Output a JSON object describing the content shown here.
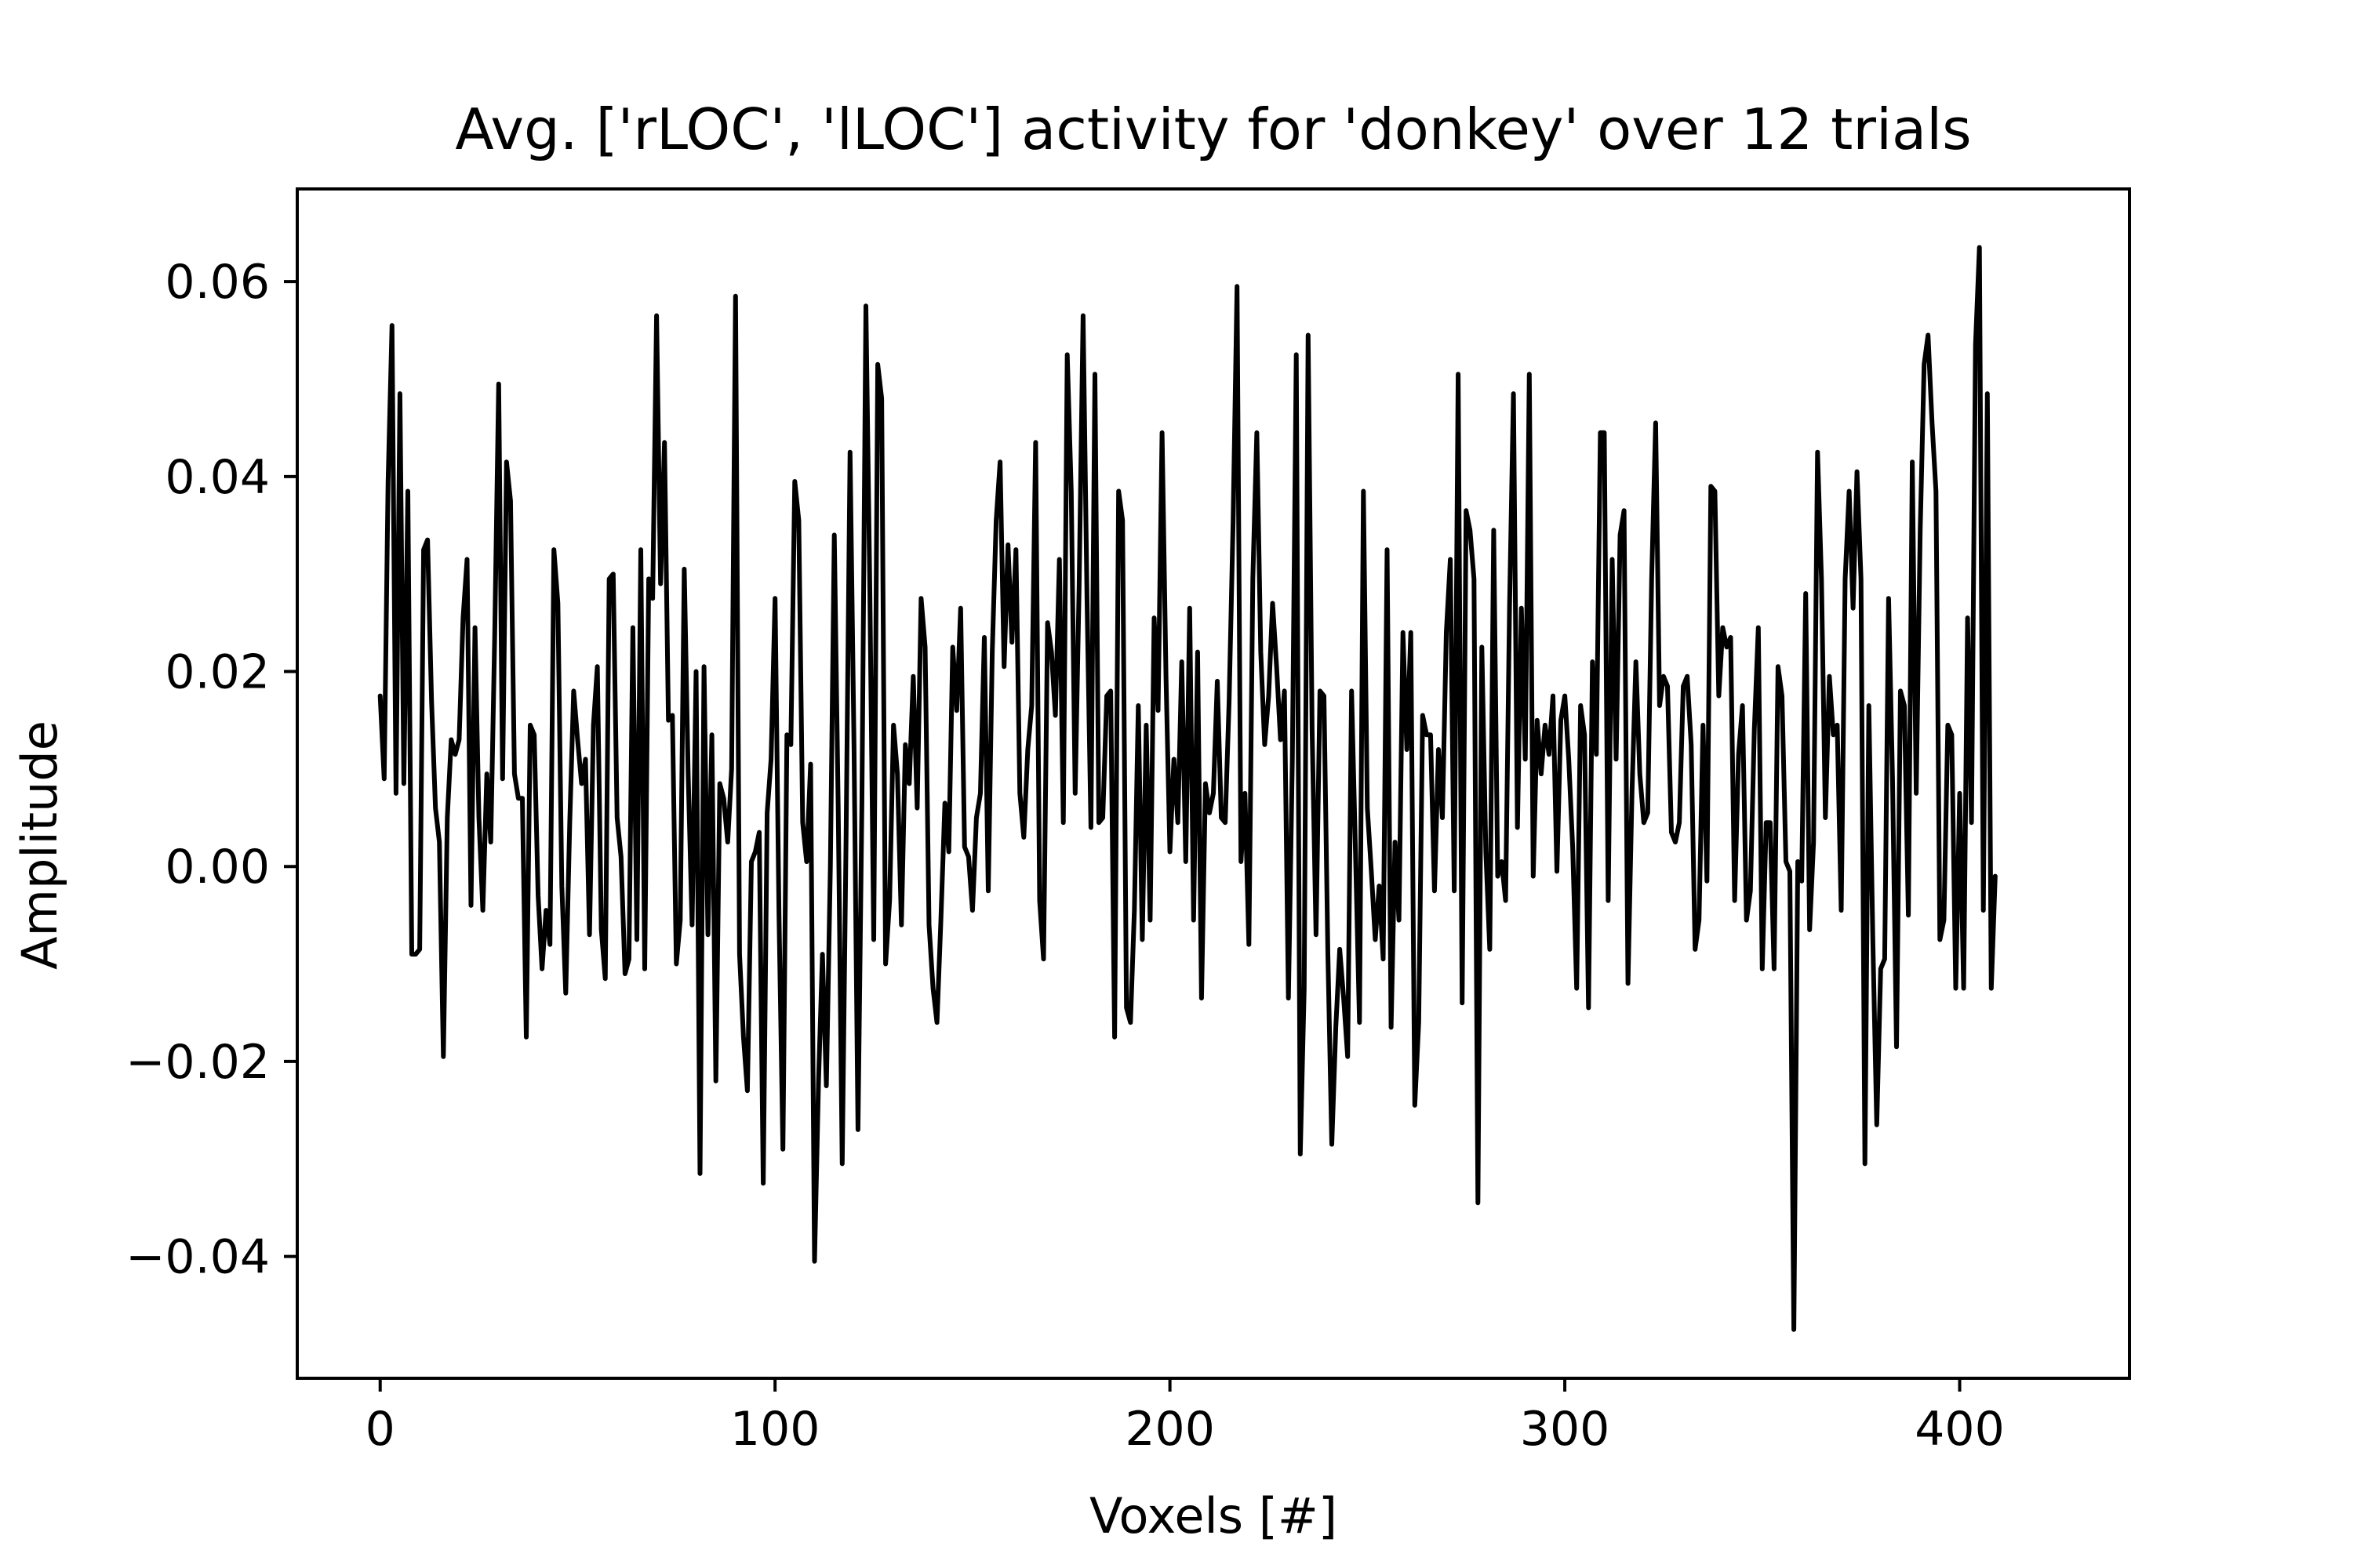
{
  "chart_data": {
    "type": "line",
    "title": "Avg. ['rLOC', 'lLOC'] activity for 'donkey' over 12 trials",
    "xlabel": "Voxels [#]",
    "ylabel": "Amplitude",
    "xlim": [
      -21,
      443
    ],
    "ylim": [
      -0.0525,
      0.0695
    ],
    "xticks": [
      0,
      100,
      200,
      300,
      400
    ],
    "xtick_labels": [
      "0",
      "100",
      "200",
      "300",
      "400"
    ],
    "yticks": [
      -0.04,
      -0.02,
      0.0,
      0.02,
      0.04,
      0.06
    ],
    "ytick_labels": [
      "−0.04",
      "−0.02",
      "0.00",
      "0.02",
      "0.04",
      "0.06"
    ],
    "grid": false,
    "legend": "none",
    "line_color": "#000000",
    "series": [
      {
        "x_start": 0,
        "x_step": 1,
        "values": [
          0.0175,
          0.009,
          0.0395,
          0.0555,
          0.0075,
          0.0485,
          0.0085,
          0.0385,
          -0.009,
          -0.009,
          -0.0085,
          0.0325,
          0.0335,
          0.017,
          0.006,
          0.0025,
          -0.0195,
          0.005,
          0.013,
          0.0115,
          0.013,
          0.0255,
          0.0315,
          -0.004,
          0.0245,
          0.005,
          -0.0045,
          0.0095,
          0.0025,
          0.0235,
          0.0495,
          0.009,
          0.0415,
          0.0375,
          0.0095,
          0.007,
          0.007,
          -0.0175,
          0.0145,
          0.0135,
          -0.003,
          -0.0105,
          -0.0045,
          -0.008,
          0.0325,
          0.027,
          -0.002,
          -0.013,
          0.0045,
          0.018,
          0.013,
          0.0085,
          0.011,
          -0.007,
          0.0145,
          0.0205,
          -0.0065,
          -0.0115,
          0.0295,
          0.03,
          0.005,
          0.001,
          -0.011,
          -0.0095,
          0.0245,
          -0.0075,
          0.0325,
          -0.0105,
          0.0295,
          0.0275,
          0.0565,
          0.029,
          0.0435,
          0.015,
          0.0155,
          -0.01,
          -0.0055,
          0.0305,
          0.0095,
          -0.006,
          0.02,
          -0.0315,
          0.0205,
          -0.007,
          0.0135,
          -0.022,
          0.0085,
          0.007,
          0.0025,
          0.01,
          0.0585,
          -0.009,
          -0.0175,
          -0.023,
          0.0005,
          0.0015,
          0.0035,
          -0.0325,
          0.0055,
          0.011,
          0.0275,
          -0.005,
          -0.029,
          0.0135,
          0.0125,
          0.0395,
          0.0355,
          0.0045,
          0.0005,
          0.0105,
          -0.0405,
          -0.022,
          -0.009,
          -0.0225,
          0.0,
          0.034,
          0.006,
          -0.0305,
          0.0035,
          0.0425,
          0.012,
          -0.027,
          0.0065,
          0.0575,
          0.0285,
          -0.0075,
          0.0515,
          0.048,
          -0.01,
          -0.0035,
          0.0145,
          0.0095,
          -0.006,
          0.0125,
          0.0085,
          0.0195,
          0.006,
          0.0275,
          0.0225,
          -0.006,
          -0.0125,
          -0.016,
          -0.0055,
          0.0065,
          0.0015,
          0.0225,
          0.016,
          0.0265,
          0.002,
          0.001,
          -0.0045,
          0.005,
          0.0075,
          0.0235,
          -0.0025,
          0.022,
          0.0355,
          0.0415,
          0.0205,
          0.033,
          0.023,
          0.0325,
          0.0075,
          0.003,
          0.012,
          0.0165,
          0.0435,
          -0.0035,
          -0.0095,
          0.025,
          0.022,
          0.0155,
          0.0315,
          0.0045,
          0.0525,
          0.0385,
          0.0075,
          0.0285,
          0.0565,
          0.0275,
          0.004,
          0.0505,
          0.0045,
          0.005,
          0.0175,
          0.018,
          -0.0175,
          0.0385,
          0.0355,
          -0.0145,
          -0.016,
          -0.0045,
          0.0165,
          -0.0075,
          0.0145,
          -0.0055,
          0.0255,
          0.016,
          0.0445,
          0.0195,
          0.0015,
          0.011,
          0.0045,
          0.021,
          0.0005,
          0.0265,
          -0.0055,
          0.022,
          -0.0135,
          0.0085,
          0.0055,
          0.0075,
          0.019,
          0.005,
          0.0045,
          0.017,
          0.0355,
          0.0595,
          0.0005,
          0.0075,
          -0.008,
          0.0295,
          0.0445,
          0.022,
          0.0125,
          0.0175,
          0.027,
          0.0205,
          0.013,
          0.018,
          -0.0135,
          0.011,
          0.0525,
          -0.0295,
          -0.0125,
          0.0545,
          0.014,
          -0.007,
          0.018,
          0.0175,
          -0.009,
          -0.0285,
          -0.0165,
          -0.0085,
          -0.0135,
          -0.0195,
          0.018,
          0.0015,
          -0.016,
          0.0385,
          0.006,
          -0.0005,
          -0.0075,
          -0.002,
          -0.0095,
          0.0325,
          -0.0165,
          0.0025,
          -0.0055,
          0.024,
          0.012,
          0.024,
          -0.0245,
          -0.016,
          0.0155,
          0.0135,
          0.0135,
          -0.0025,
          0.012,
          0.005,
          0.024,
          0.0315,
          -0.0025,
          0.0505,
          -0.014,
          0.0365,
          0.0345,
          0.0295,
          -0.0345,
          0.0225,
          0.0015,
          -0.0085,
          0.0345,
          -0.001,
          0.0005,
          -0.0035,
          0.0265,
          0.0485,
          0.004,
          0.0265,
          0.011,
          0.0505,
          -0.001,
          0.015,
          0.0095,
          0.0145,
          0.0115,
          0.0175,
          -0.0005,
          0.015,
          0.0175,
          0.011,
          0.002,
          -0.0125,
          0.0165,
          0.0135,
          -0.0145,
          0.021,
          0.0115,
          0.0445,
          0.0445,
          -0.0035,
          0.0315,
          0.011,
          0.034,
          0.0365,
          -0.012,
          0.0075,
          0.021,
          0.0095,
          0.0045,
          0.0055,
          0.0295,
          0.0455,
          0.0165,
          0.0195,
          0.0185,
          0.0035,
          0.0025,
          0.0045,
          0.0185,
          0.0195,
          0.0125,
          -0.0085,
          -0.0055,
          0.0145,
          -0.0015,
          0.039,
          0.0385,
          0.0175,
          0.0245,
          0.0225,
          0.0235,
          -0.0035,
          0.0115,
          0.0165,
          -0.0055,
          -0.0025,
          0.014,
          0.0245,
          -0.0105,
          0.0045,
          0.0045,
          -0.0105,
          0.0205,
          0.0175,
          0.0005,
          -0.0005,
          -0.0475,
          0.0005,
          -0.0015,
          0.028,
          -0.0065,
          0.0025,
          0.0425,
          0.0295,
          0.005,
          0.0195,
          0.0135,
          0.0145,
          -0.0045,
          0.0295,
          0.0385,
          0.0265,
          0.0405,
          0.0295,
          -0.0305,
          0.0165,
          -0.0075,
          -0.0265,
          -0.0105,
          -0.0095,
          0.0275,
          0.009,
          -0.0185,
          0.018,
          0.0165,
          -0.005,
          0.0415,
          0.0075,
          0.0345,
          0.0515,
          0.0545,
          0.0455,
          0.0385,
          -0.0075,
          -0.0055,
          0.0145,
          0.0135,
          -0.0125,
          0.0075,
          -0.0125,
          0.0255,
          0.0045,
          0.0535,
          0.0635,
          -0.0045,
          0.0485,
          -0.0125,
          -0.001
        ]
      }
    ]
  }
}
